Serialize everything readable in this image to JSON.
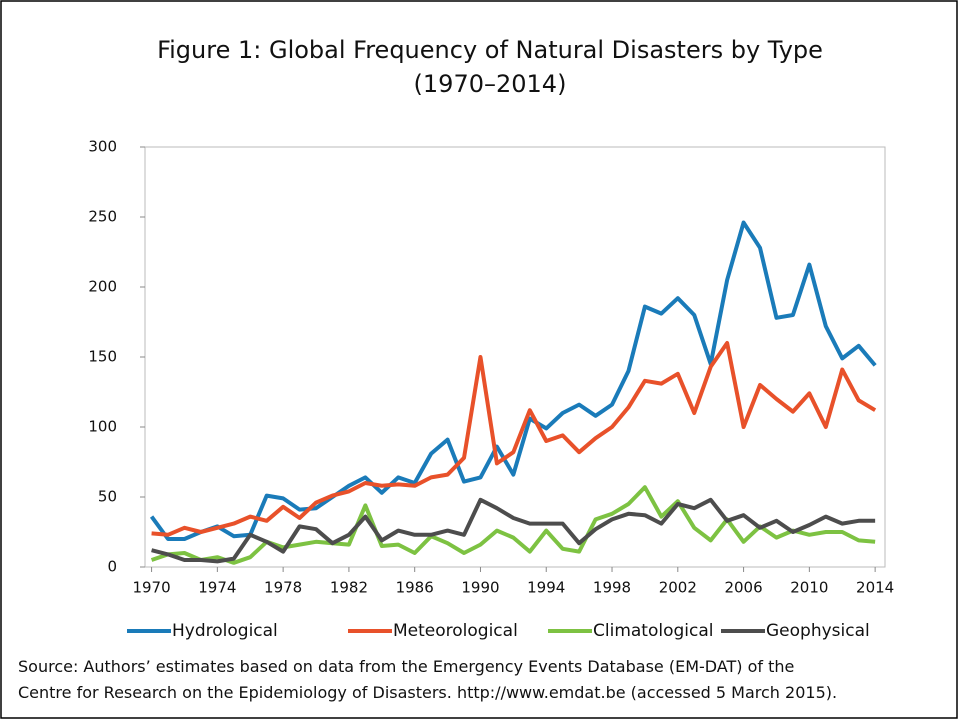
{
  "chart_data": {
    "type": "line",
    "title": [
      "Figure 1: Global Frequency of Natural Disasters by Type",
      "(1970–2014)"
    ],
    "source": [
      "Source: Authors’ estimates based on data from the Emergency Events Database (EM-DAT) of the",
      "Centre for Research on the Epidemiology of Disasters. http://www.emdat.be (accessed 5 March 2015)."
    ],
    "x": [
      1970,
      1971,
      1972,
      1973,
      1974,
      1975,
      1976,
      1977,
      1978,
      1979,
      1980,
      1981,
      1982,
      1983,
      1984,
      1985,
      1986,
      1987,
      1988,
      1989,
      1990,
      1991,
      1992,
      1993,
      1994,
      1995,
      1996,
      1997,
      1998,
      1999,
      2000,
      2001,
      2002,
      2003,
      2004,
      2005,
      2006,
      2007,
      2008,
      2009,
      2010,
      2011,
      2012,
      2013,
      2014
    ],
    "series": [
      {
        "name": "Hydrological",
        "color": "#1a7bb9",
        "values": [
          36,
          20,
          20,
          25,
          29,
          22,
          23,
          51,
          49,
          41,
          42,
          50,
          58,
          64,
          53,
          64,
          60,
          81,
          91,
          61,
          64,
          86,
          66,
          106,
          99,
          110,
          116,
          108,
          116,
          140,
          186,
          181,
          192,
          180,
          145,
          205,
          246,
          228,
          178,
          180,
          216,
          172,
          149,
          158,
          144
        ]
      },
      {
        "name": "Meteorological",
        "color": "#e8512a",
        "values": [
          24,
          23,
          28,
          25,
          28,
          31,
          36,
          33,
          43,
          35,
          46,
          51,
          54,
          60,
          58,
          59,
          58,
          64,
          66,
          78,
          150,
          74,
          82,
          112,
          90,
          94,
          82,
          92,
          100,
          114,
          133,
          131,
          138,
          110,
          143,
          160,
          100,
          130,
          120,
          111,
          124,
          100,
          141,
          119,
          112
        ]
      },
      {
        "name": "Climatological",
        "color": "#7dc242",
        "values": [
          5,
          9,
          10,
          5,
          7,
          3,
          7,
          18,
          14,
          16,
          18,
          17,
          16,
          44,
          15,
          16,
          10,
          22,
          17,
          10,
          16,
          26,
          21,
          11,
          26,
          13,
          11,
          34,
          38,
          45,
          57,
          36,
          47,
          28,
          19,
          34,
          18,
          29,
          21,
          26,
          23,
          25,
          25,
          19,
          18
        ]
      },
      {
        "name": "Geophysical",
        "color": "#4d4d4d",
        "values": [
          12,
          9,
          5,
          5,
          4,
          6,
          23,
          18,
          11,
          29,
          27,
          17,
          23,
          36,
          19,
          26,
          23,
          23,
          26,
          23,
          48,
          42,
          35,
          31,
          31,
          31,
          17,
          27,
          34,
          38,
          37,
          31,
          45,
          42,
          48,
          33,
          37,
          28,
          33,
          25,
          30,
          36,
          31,
          33,
          33
        ]
      }
    ],
    "xlim": [
      1969.6,
      2014.6
    ],
    "xticks": [
      1970,
      1974,
      1978,
      1982,
      1986,
      1990,
      1994,
      1998,
      2002,
      2006,
      2010,
      2014
    ],
    "ylim": [
      0,
      300
    ],
    "yticks": [
      0,
      50,
      100,
      150,
      200,
      250,
      300
    ],
    "grid": false,
    "legend": "bottom"
  }
}
